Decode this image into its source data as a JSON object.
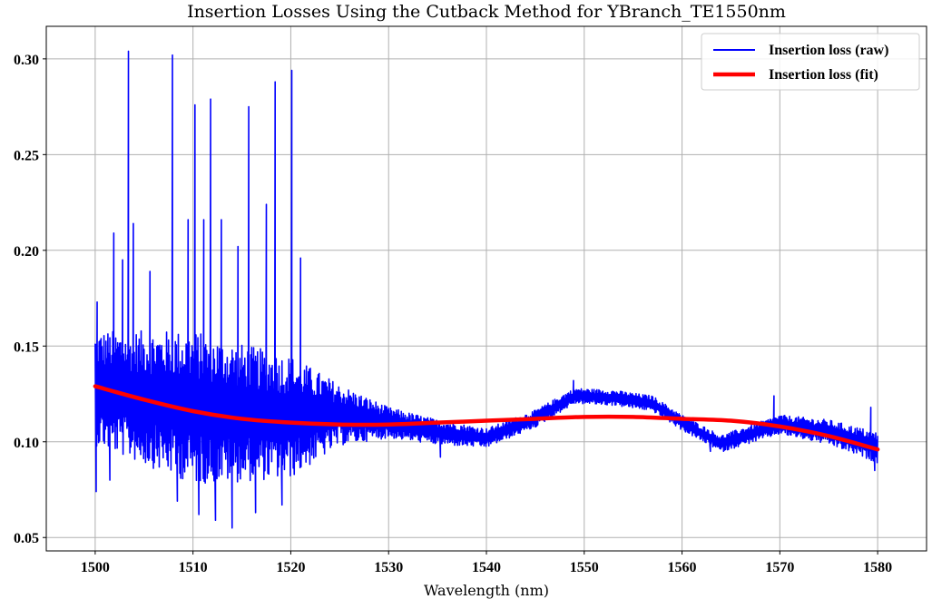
{
  "chart_data": {
    "type": "line",
    "title": "Insertion Losses Using the Cutback Method for YBranch_TE1550nm",
    "xlabel": "Wavelength (nm)",
    "ylabel": "",
    "xlim": [
      1495,
      1585
    ],
    "ylim": [
      0.043,
      0.317
    ],
    "x_ticks": [
      1500,
      1510,
      1520,
      1530,
      1540,
      1550,
      1560,
      1570,
      1580
    ],
    "x_tick_labels": [
      "1500",
      "1510",
      "1520",
      "1530",
      "1540",
      "1550",
      "1560",
      "1570",
      "1580"
    ],
    "y_ticks": [
      0.05,
      0.1,
      0.15,
      0.2,
      0.25,
      0.3
    ],
    "y_tick_labels": [
      "0.05",
      "0.10",
      "0.15",
      "0.20",
      "0.25",
      "0.30"
    ],
    "grid": true,
    "legend_position": "top-right",
    "series": [
      {
        "name": "Insertion loss (raw)",
        "color": "#0000ff",
        "style": "thin-line",
        "envelope_center": [
          [
            1500,
            0.128
          ],
          [
            1505,
            0.123
          ],
          [
            1510,
            0.118
          ],
          [
            1515,
            0.115
          ],
          [
            1520,
            0.113
          ],
          [
            1525,
            0.114
          ],
          [
            1530,
            0.11
          ],
          [
            1535,
            0.105
          ],
          [
            1540,
            0.102
          ],
          [
            1545,
            0.112
          ],
          [
            1549,
            0.124
          ],
          [
            1553,
            0.123
          ],
          [
            1557,
            0.12
          ],
          [
            1560,
            0.11
          ],
          [
            1564,
            0.099
          ],
          [
            1567,
            0.104
          ],
          [
            1570,
            0.109
          ],
          [
            1575,
            0.105
          ],
          [
            1580,
            0.097
          ]
        ],
        "envelope_halfwidth": [
          [
            1500,
            0.03
          ],
          [
            1510,
            0.04
          ],
          [
            1520,
            0.032
          ],
          [
            1525,
            0.016
          ],
          [
            1530,
            0.008
          ],
          [
            1540,
            0.005
          ],
          [
            1550,
            0.004
          ],
          [
            1560,
            0.004
          ],
          [
            1570,
            0.005
          ],
          [
            1580,
            0.008
          ]
        ],
        "spikes": [
          [
            1500.1,
            0.074
          ],
          [
            1500.2,
            0.173
          ],
          [
            1501.5,
            0.08
          ],
          [
            1501.9,
            0.209
          ],
          [
            1502.8,
            0.195
          ],
          [
            1503.4,
            0.304
          ],
          [
            1503.9,
            0.214
          ],
          [
            1505.6,
            0.189
          ],
          [
            1507.9,
            0.302
          ],
          [
            1508.4,
            0.069
          ],
          [
            1509.5,
            0.216
          ],
          [
            1510.2,
            0.276
          ],
          [
            1510.6,
            0.062
          ],
          [
            1511.1,
            0.216
          ],
          [
            1511.8,
            0.279
          ],
          [
            1512.3,
            0.059
          ],
          [
            1512.9,
            0.216
          ],
          [
            1514.0,
            0.055
          ],
          [
            1514.6,
            0.202
          ],
          [
            1515.7,
            0.275
          ],
          [
            1516.4,
            0.063
          ],
          [
            1517.5,
            0.224
          ],
          [
            1518.4,
            0.288
          ],
          [
            1519.1,
            0.067
          ],
          [
            1520.1,
            0.294
          ],
          [
            1521.0,
            0.196
          ],
          [
            1535.3,
            0.092
          ],
          [
            1548.9,
            0.132
          ],
          [
            1562.9,
            0.095
          ],
          [
            1569.4,
            0.124
          ],
          [
            1579.3,
            0.118
          ],
          [
            1579.7,
            0.085
          ]
        ]
      },
      {
        "name": "Insertion loss (fit)",
        "color": "#ff0000",
        "style": "thick-line",
        "x": [
          1500,
          1505,
          1510,
          1515,
          1520,
          1525,
          1530,
          1535,
          1540,
          1545,
          1550,
          1555,
          1560,
          1565,
          1570,
          1575,
          1580
        ],
        "y": [
          0.129,
          0.122,
          0.116,
          0.112,
          0.11,
          0.109,
          0.109,
          0.11,
          0.111,
          0.112,
          0.113,
          0.113,
          0.112,
          0.111,
          0.108,
          0.103,
          0.096
        ]
      }
    ]
  }
}
